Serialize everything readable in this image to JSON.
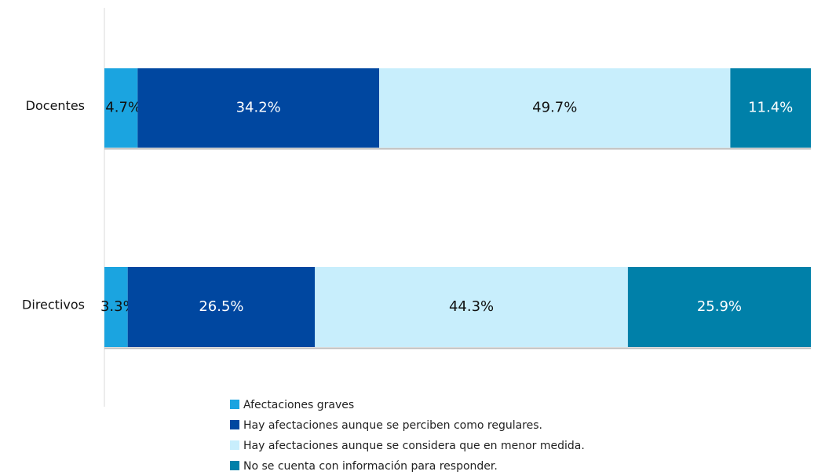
{
  "chart_data": {
    "type": "stacked-bar-horizontal",
    "categories": [
      "Docentes",
      "Directivos"
    ],
    "series": [
      {
        "name": "Afectaciones graves",
        "color": "#1ba4e0",
        "values": [
          4.7,
          3.3
        ],
        "value_labels": [
          "4.7%",
          "3.3%"
        ]
      },
      {
        "name": "Hay afectaciones aunque se perciben como regulares.",
        "color": "#0047a0",
        "values": [
          34.2,
          26.5
        ],
        "value_labels": [
          "34.2%",
          "26.5%"
        ]
      },
      {
        "name": "Hay afectaciones aunque se considera que en menor medida.",
        "color": "#c8eefc",
        "values": [
          49.7,
          44.3
        ],
        "value_labels": [
          "49.7%",
          "44.3%"
        ]
      },
      {
        "name": "No se cuenta con información para responder.",
        "color": "#0080a9",
        "values": [
          11.4,
          25.9
        ],
        "value_labels": [
          "11.4%",
          "25.9%"
        ]
      }
    ]
  }
}
